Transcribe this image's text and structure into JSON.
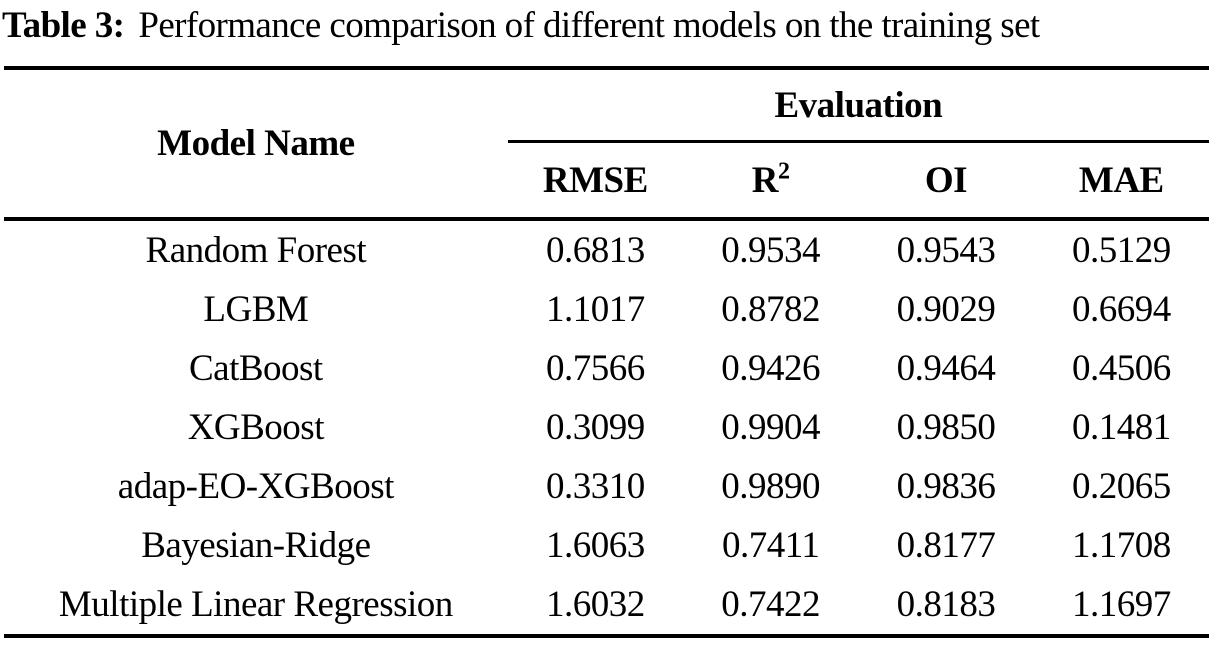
{
  "caption": {
    "label": "Table 3:",
    "text": "Performance comparison of different models on the training set"
  },
  "table": {
    "model_col_header": "Model Name",
    "eval_group_header": "Evaluation",
    "metric_headers": {
      "rmse": "RMSE",
      "r2_base": "R",
      "r2_sup": "2",
      "oi": "OI",
      "mae": "MAE"
    },
    "rows": [
      {
        "model": "Random Forest",
        "rmse": "0.6813",
        "r2": "0.9534",
        "oi": "0.9543",
        "mae": "0.5129"
      },
      {
        "model": "LGBM",
        "rmse": "1.1017",
        "r2": "0.8782",
        "oi": "0.9029",
        "mae": "0.6694"
      },
      {
        "model": "CatBoost",
        "rmse": "0.7566",
        "r2": "0.9426",
        "oi": "0.9464",
        "mae": "0.4506"
      },
      {
        "model": "XGBoost",
        "rmse": "0.3099",
        "r2": "0.9904",
        "oi": "0.9850",
        "mae": "0.1481"
      },
      {
        "model": "adap-EO-XGBoost",
        "rmse": "0.3310",
        "r2": "0.9890",
        "oi": "0.9836",
        "mae": "0.2065"
      },
      {
        "model": "Bayesian-Ridge",
        "rmse": "1.6063",
        "r2": "0.7411",
        "oi": "0.8177",
        "mae": "1.1708"
      },
      {
        "model": "Multiple Linear Regression",
        "rmse": "1.6032",
        "r2": "0.7422",
        "oi": "0.8183",
        "mae": "1.1697"
      }
    ],
    "colors": {
      "text": "#000000",
      "background": "#ffffff",
      "rule": "#000000"
    }
  }
}
